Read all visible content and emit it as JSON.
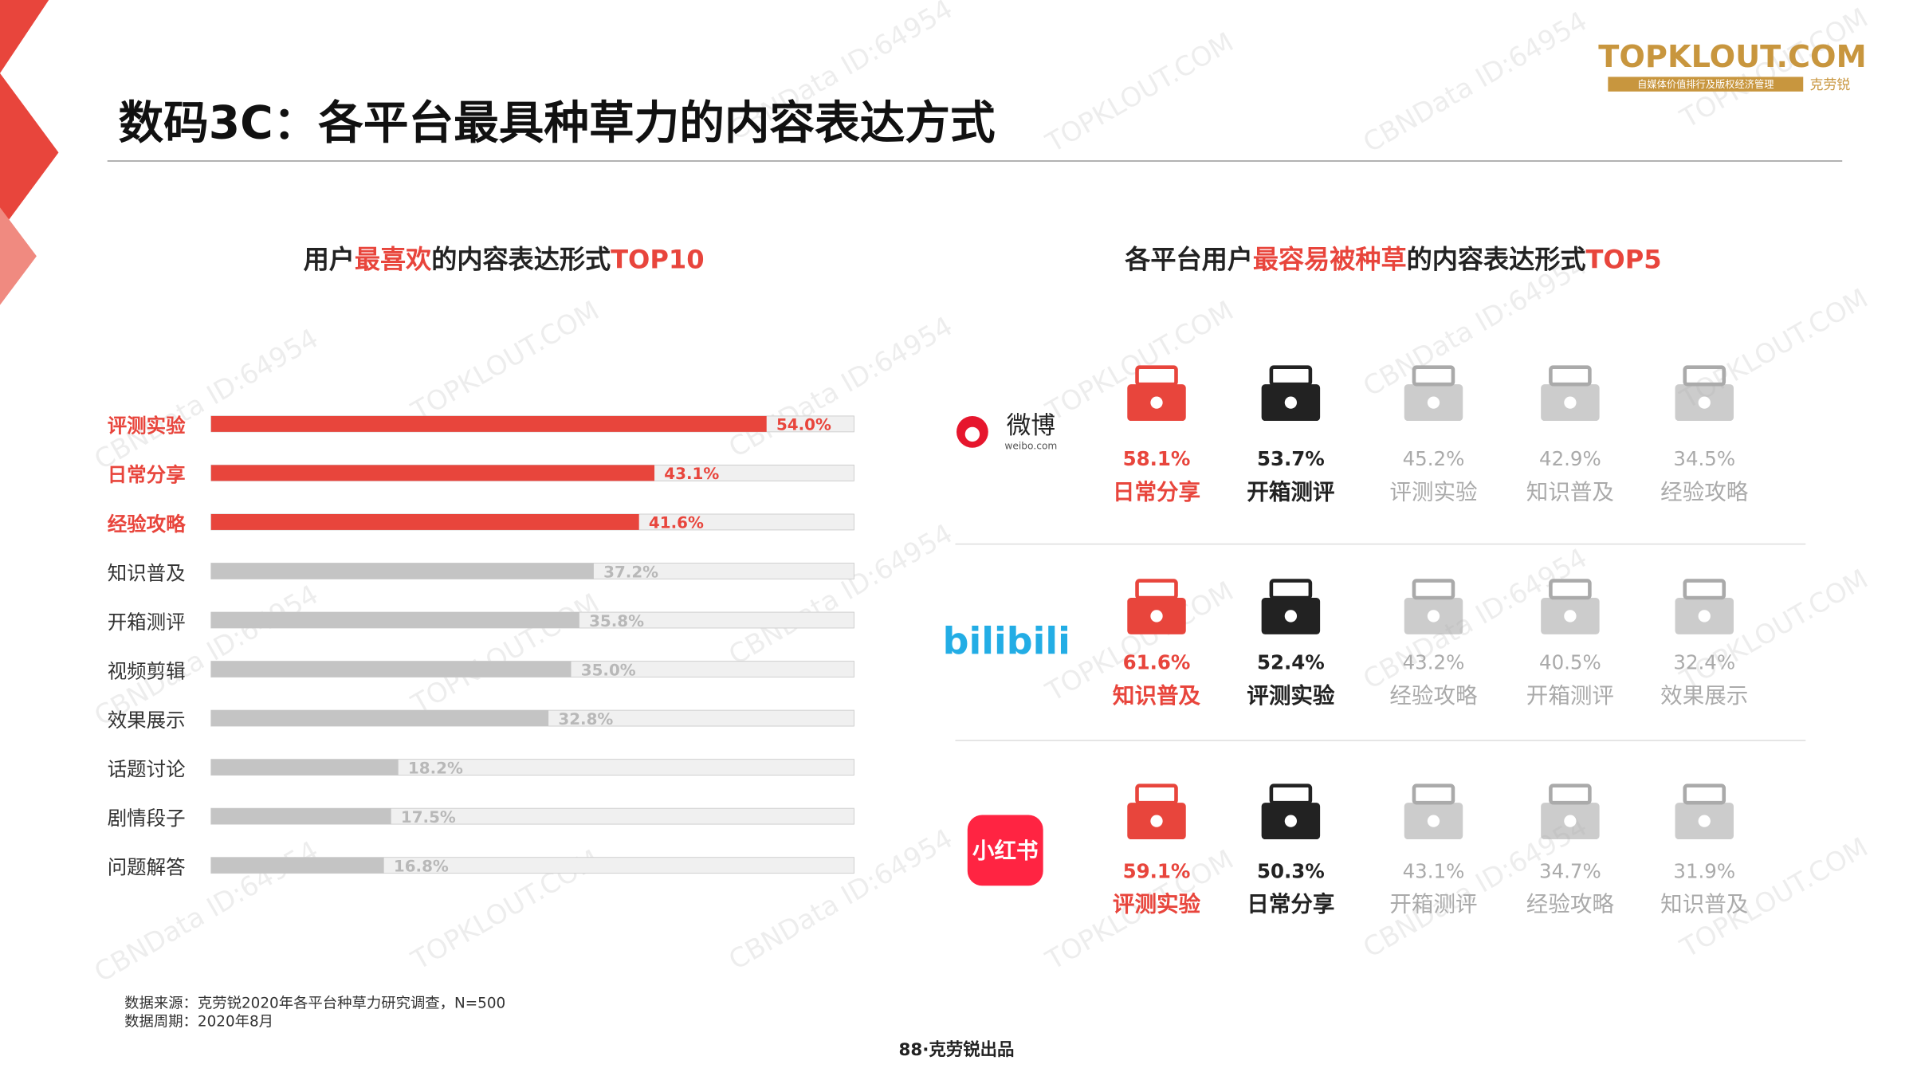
{
  "header": {
    "title": "数码3C：各平台最具种草力的内容表达方式",
    "logo": "TOPKLOUT.COM",
    "logo_tagline": "自媒体价值排行及版权经济管理",
    "logo_brand": "克劳锐"
  },
  "watermarks": [
    "CBNData ID:64954",
    "TOPKLOUT.COM"
  ],
  "chart_data": {
    "type": "hbar",
    "title_parts": [
      {
        "text": "用户"
      },
      {
        "text": "最喜欢",
        "color": "#e8453c"
      },
      {
        "text": "的内容表达形式"
      },
      {
        "text": "TOP10",
        "color": "#e8453c"
      }
    ],
    "categories": [
      "评测实验",
      "日常分享",
      "经验攻略",
      "知识普及",
      "开箱测评",
      "视频剪辑",
      "效果展示",
      "话题讨论",
      "剧情段子",
      "问题解答"
    ],
    "values": [
      54.0,
      43.1,
      41.6,
      37.2,
      35.8,
      35.0,
      32.8,
      18.2,
      17.5,
      16.8
    ],
    "value_labels": [
      "54.0%",
      "43.1%",
      "41.6%",
      "37.2%",
      "35.8%",
      "35.0%",
      "32.8%",
      "18.2%",
      "17.5%",
      "16.8%"
    ],
    "colors": [
      "#e8453c",
      "#e8453c",
      "#e8453c",
      "#c4c4c4",
      "#c4c4c4",
      "#c4c4c4",
      "#c4c4c4",
      "#c4c4c4",
      "#c4c4c4",
      "#c4c4c4"
    ],
    "xlim": [
      0,
      62.5
    ]
  },
  "platforms": {
    "title_parts": [
      {
        "text": "各平台用户"
      },
      {
        "text": "最容易被种草",
        "color": "#e8453c"
      },
      {
        "text": "的内容表达形式"
      },
      {
        "text": "TOP5",
        "color": "#e8453c"
      }
    ],
    "rows": [
      {
        "logo": [
          "微博",
          "weibo.com"
        ],
        "items": [
          {
            "value": 58.1,
            "value_label": "58.1%",
            "label": "日常分享"
          },
          {
            "value": 53.7,
            "value_label": "53.7%",
            "label": "开箱测评"
          },
          {
            "value": 45.2,
            "value_label": "45.2%",
            "label": "评测实验"
          },
          {
            "value": 42.9,
            "value_label": "42.9%",
            "label": "知识普及"
          },
          {
            "value": 34.5,
            "value_label": "34.5%",
            "label": "经验攻略"
          }
        ]
      },
      {
        "logo": [
          "bilibili"
        ],
        "items": [
          {
            "value": 61.6,
            "value_label": "61.6%",
            "label": "知识普及"
          },
          {
            "value": 52.4,
            "value_label": "52.4%",
            "label": "评测实验"
          },
          {
            "value": 43.2,
            "value_label": "43.2%",
            "label": "经验攻略"
          },
          {
            "value": 40.5,
            "value_label": "40.5%",
            "label": "开箱测评"
          },
          {
            "value": 32.4,
            "value_label": "32.4%",
            "label": "效果展示"
          }
        ]
      },
      {
        "logo": [
          "小红书"
        ],
        "items": [
          {
            "value": 59.1,
            "value_label": "59.1%",
            "label": "评测实验"
          },
          {
            "value": 50.3,
            "value_label": "50.3%",
            "label": "日常分享"
          },
          {
            "value": 43.1,
            "value_label": "43.1%",
            "label": "开箱测评"
          },
          {
            "value": 34.7,
            "value_label": "34.7%",
            "label": "经验攻略"
          },
          {
            "value": 31.9,
            "value_label": "31.9%",
            "label": "知识普及"
          }
        ]
      }
    ]
  },
  "footer": {
    "source": "数据来源：克劳锐2020年各平台种草力研究调查，N=500",
    "period": "数据周期：2020年8月",
    "page": "88·克劳锐出品"
  }
}
